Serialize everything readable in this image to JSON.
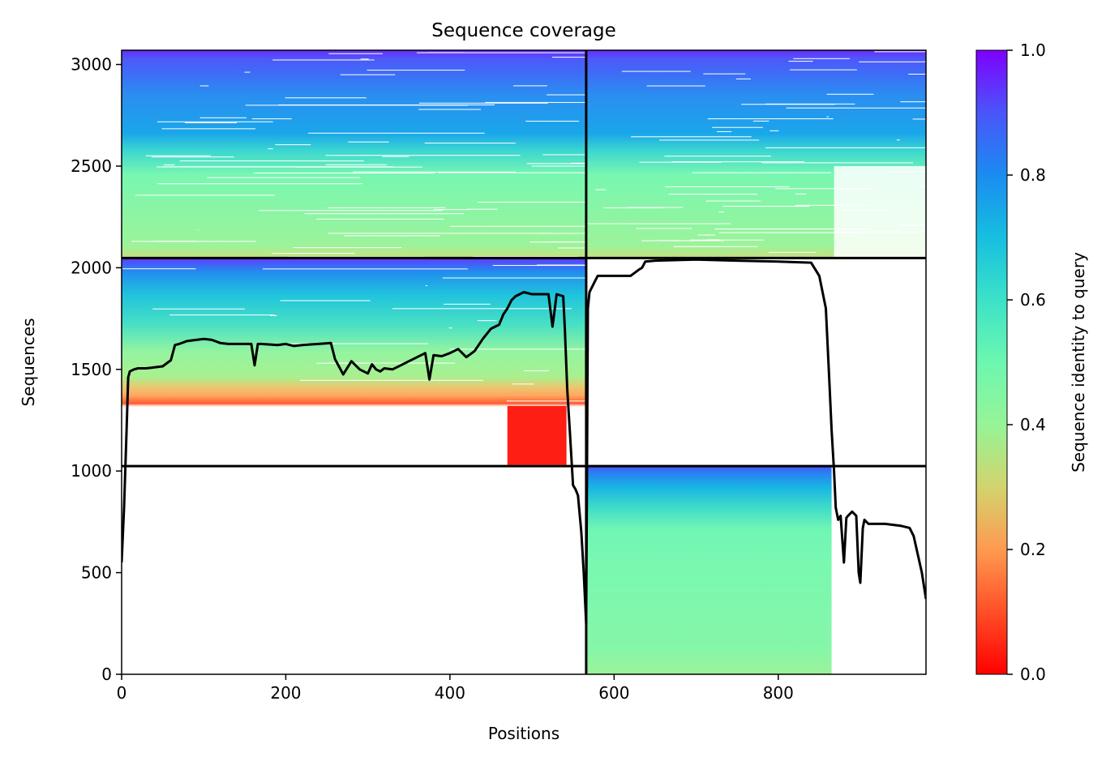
{
  "chart_data": {
    "type": "heatmap",
    "title": "Sequence coverage",
    "xlabel": "Positions",
    "ylabel": "Sequences",
    "colorbar_label": "Sequence identity to query",
    "colormap": "rainbow_r",
    "xlim": [
      0,
      980
    ],
    "ylim": [
      0,
      3070
    ],
    "xticks": [
      0,
      200,
      400,
      600,
      800
    ],
    "yticks": [
      0,
      500,
      1000,
      1500,
      2000,
      2500,
      3000
    ],
    "colorbar_ticks": [
      0.0,
      0.2,
      0.4,
      0.6,
      0.8,
      1.0
    ],
    "colorbar_range": [
      0.0,
      1.0
    ],
    "block_boundaries": {
      "x": [
        566
      ],
      "y": [
        1024,
        2048
      ]
    },
    "coverage_line": {
      "x": [
        0,
        3,
        6,
        8,
        10,
        15,
        20,
        30,
        50,
        60,
        65,
        70,
        80,
        100,
        110,
        120,
        130,
        140,
        158,
        162,
        166,
        170,
        190,
        200,
        210,
        220,
        240,
        255,
        260,
        270,
        280,
        290,
        300,
        305,
        310,
        315,
        320,
        330,
        340,
        350,
        360,
        370,
        375,
        380,
        390,
        400,
        410,
        420,
        430,
        440,
        450,
        460,
        465,
        470,
        475,
        480,
        485,
        490,
        500,
        510,
        515,
        520,
        525,
        530,
        538,
        540,
        543,
        546,
        550,
        553,
        556,
        560,
        563,
        566,
        568,
        570,
        575,
        580,
        590,
        600,
        610,
        620,
        630,
        634,
        638,
        650,
        700,
        750,
        800,
        840,
        850,
        858,
        862,
        865,
        868,
        870,
        873,
        876,
        880,
        883,
        885,
        890,
        895,
        898,
        900,
        903,
        905,
        910,
        930,
        950,
        960,
        965,
        975,
        980
      ],
      "y": [
        550,
        820,
        1200,
        1460,
        1490,
        1500,
        1505,
        1505,
        1515,
        1545,
        1620,
        1625,
        1640,
        1650,
        1645,
        1630,
        1625,
        1625,
        1625,
        1520,
        1625,
        1625,
        1620,
        1625,
        1615,
        1620,
        1625,
        1630,
        1550,
        1475,
        1540,
        1500,
        1480,
        1525,
        1500,
        1490,
        1505,
        1500,
        1520,
        1540,
        1560,
        1580,
        1450,
        1570,
        1565,
        1580,
        1600,
        1560,
        1590,
        1650,
        1700,
        1720,
        1770,
        1800,
        1840,
        1860,
        1870,
        1880,
        1870,
        1870,
        1870,
        1870,
        1710,
        1870,
        1860,
        1700,
        1400,
        1200,
        930,
        910,
        880,
        700,
        500,
        250,
        1800,
        1880,
        1920,
        1960,
        1960,
        1960,
        1960,
        1960,
        1990,
        2000,
        2030,
        2035,
        2040,
        2035,
        2030,
        2025,
        1960,
        1800,
        1460,
        1200,
        1000,
        820,
        760,
        780,
        550,
        770,
        780,
        800,
        780,
        500,
        450,
        720,
        760,
        740,
        740,
        730,
        720,
        680,
        500,
        370
      ]
    },
    "blocks": [
      {
        "row": "bottom",
        "col": "left",
        "filled": false
      },
      {
        "row": "bottom",
        "col": "right",
        "filled": true,
        "fill_until_x": 865
      },
      {
        "row": "middle",
        "col": "left",
        "filled": true,
        "fill_until_x": 566
      },
      {
        "row": "middle",
        "col": "right",
        "filled": false
      },
      {
        "row": "top",
        "col": "left",
        "filled": true,
        "fill_until_x": 566
      },
      {
        "row": "top",
        "col": "right",
        "filled": true,
        "fill_until_x": 980
      }
    ]
  }
}
